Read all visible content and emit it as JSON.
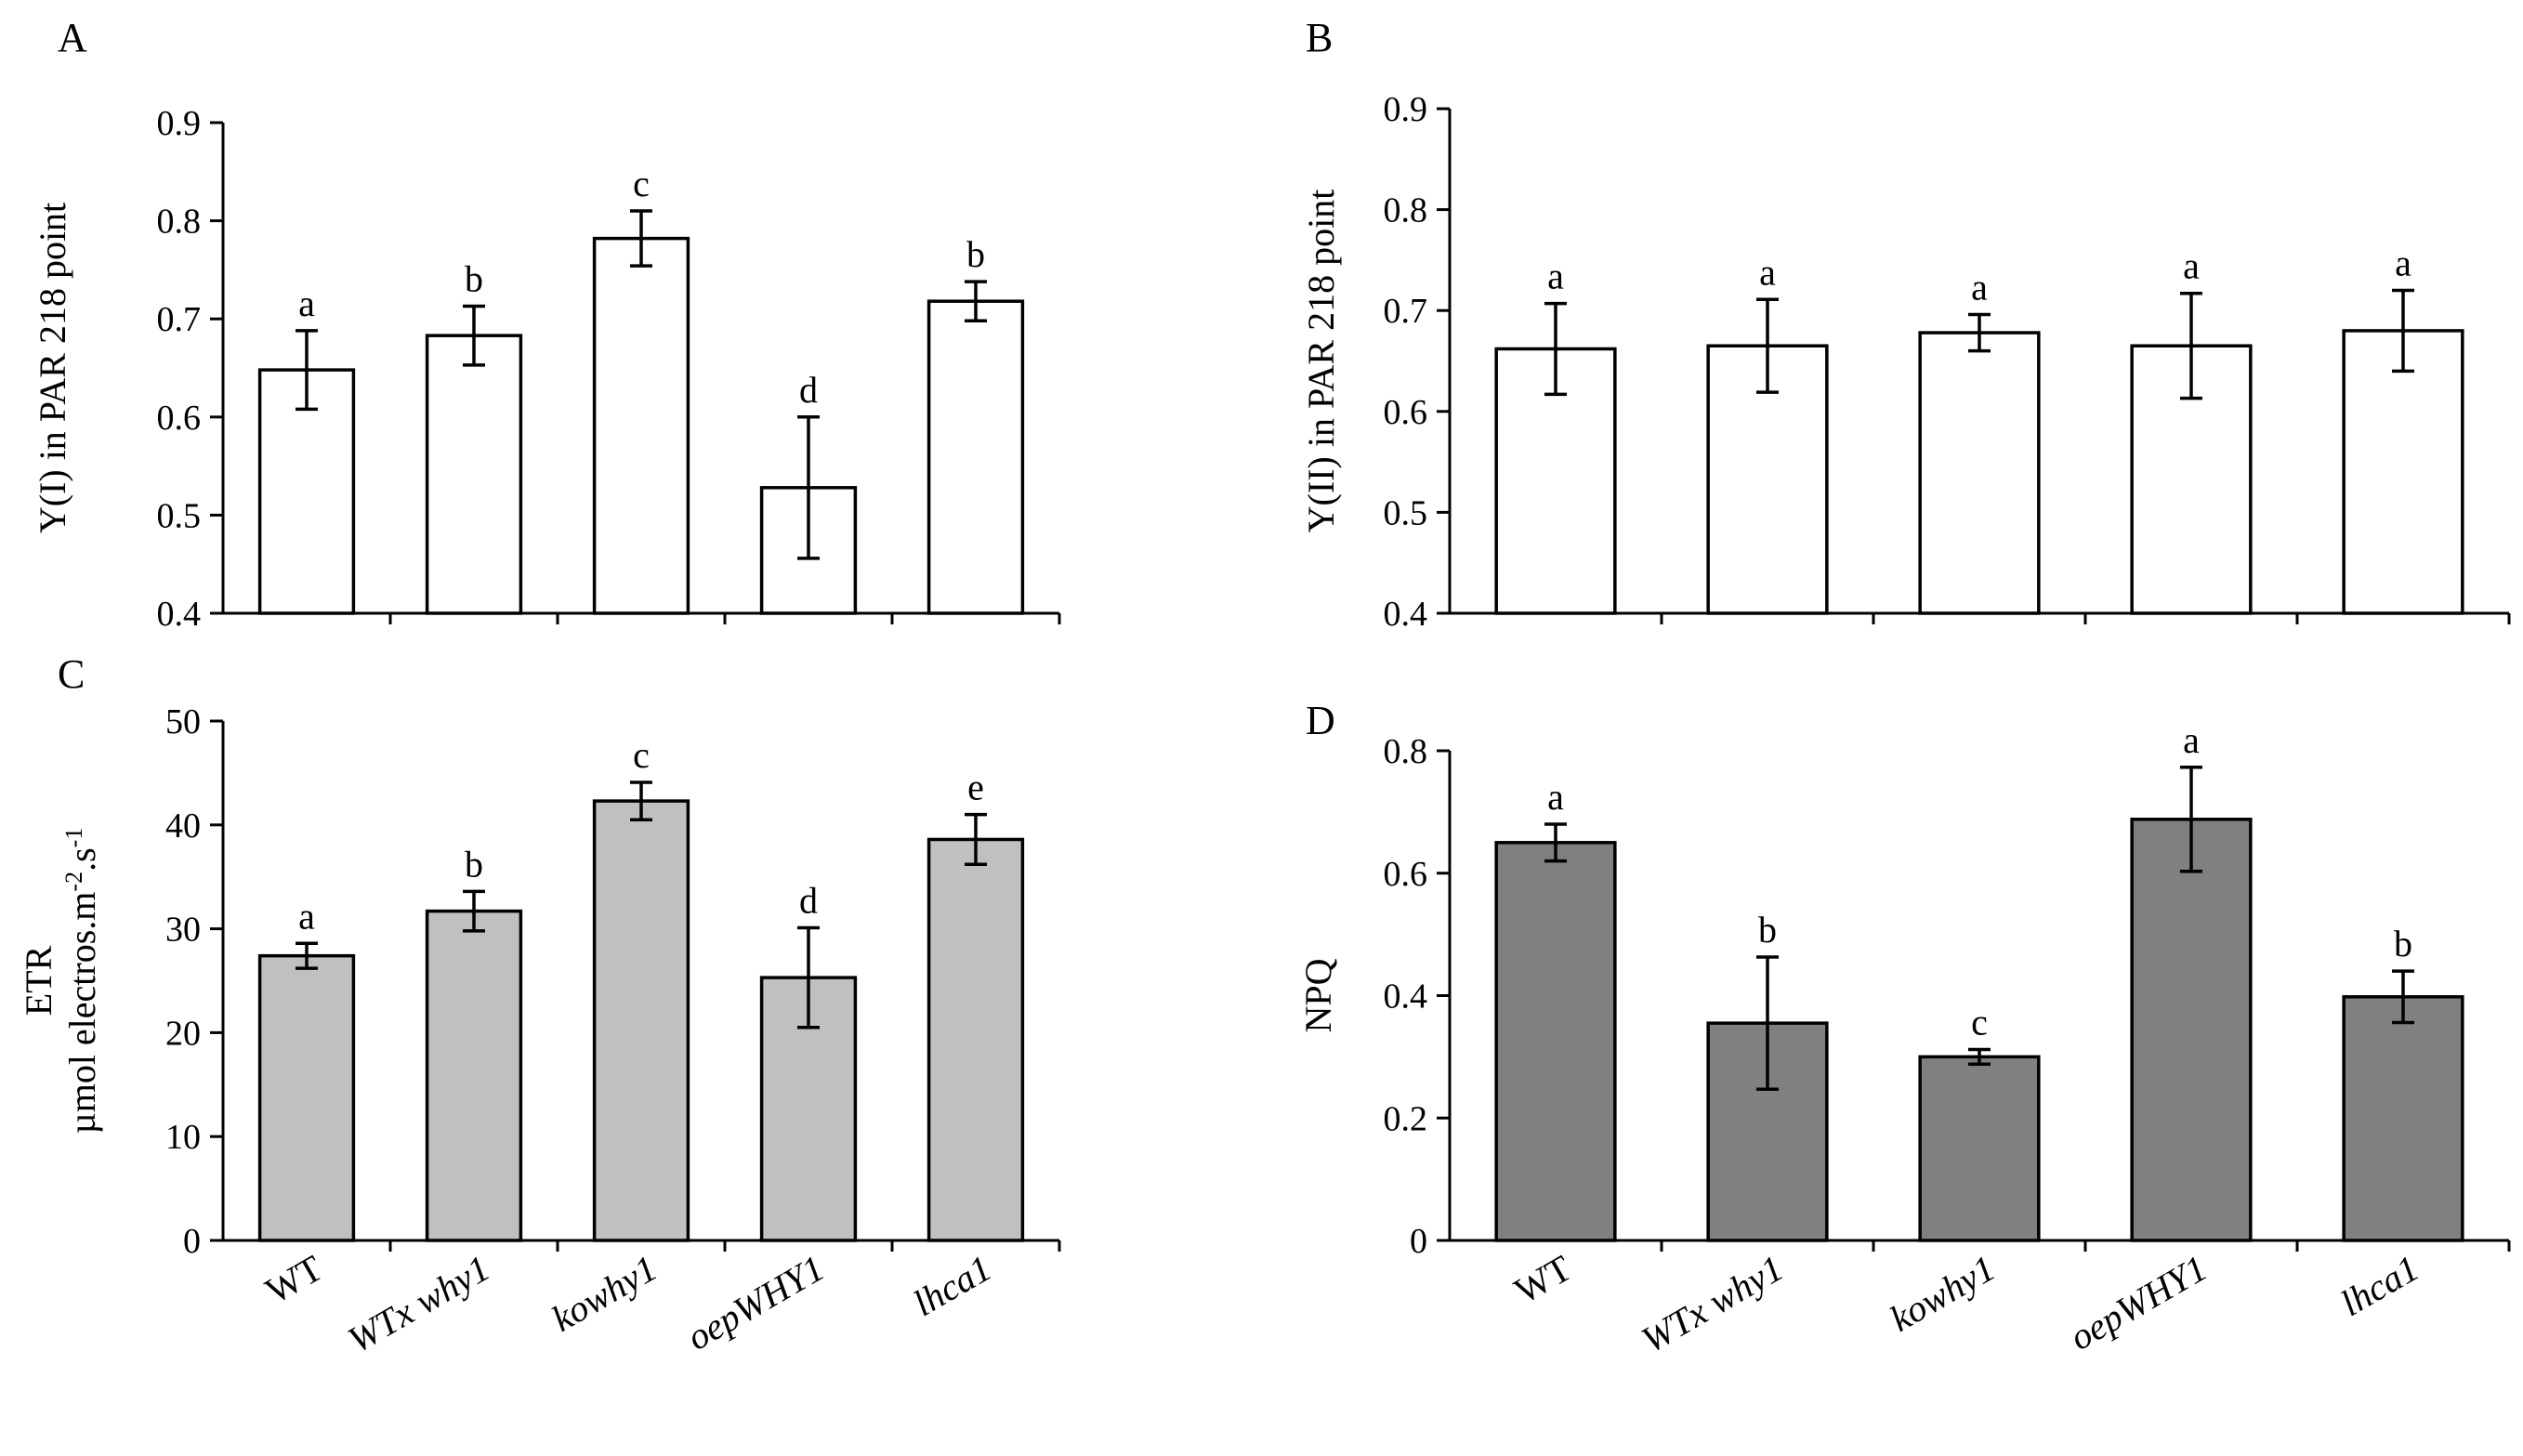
{
  "chart_data": [
    {
      "type": "bar",
      "panel": "A",
      "ylabel": "Y(I) in PAR 218 point",
      "ylim": [
        0.4,
        0.9
      ],
      "yticks": [
        "0.4",
        "0.5",
        "0.6",
        "0.7",
        "0.8",
        "0.9"
      ],
      "fill": "#ffffff",
      "categories": [
        "WT",
        "WTx why1",
        "kowhy1",
        "oepWHY1",
        "lhca1"
      ],
      "values": [
        0.648,
        0.683,
        0.782,
        0.528,
        0.718
      ],
      "errors": [
        0.04,
        0.03,
        0.028,
        0.072,
        0.02
      ],
      "letters": [
        "a",
        "b",
        "c",
        "d",
        "b"
      ]
    },
    {
      "type": "bar",
      "panel": "B",
      "ylabel": "Y(II) in PAR 218 point",
      "ylim": [
        0.4,
        0.9
      ],
      "yticks": [
        "0.4",
        "0.5",
        "0.6",
        "0.7",
        "0.8",
        "0.9"
      ],
      "fill": "#ffffff",
      "categories": [
        "WT",
        "WTx why1",
        "kowhy1",
        "oepWHY1",
        "lhca1"
      ],
      "values": [
        0.662,
        0.665,
        0.678,
        0.665,
        0.68
      ],
      "errors": [
        0.045,
        0.046,
        0.018,
        0.052,
        0.04
      ],
      "letters": [
        "a",
        "a",
        "a",
        "a",
        "a"
      ]
    },
    {
      "type": "bar",
      "panel": "C",
      "ylabel": "ETR",
      "ylabel2_parts": [
        "µmol electros.m",
        "-2",
        ".s",
        "-1"
      ],
      "ylim": [
        0,
        50
      ],
      "yticks": [
        "0",
        "10",
        "20",
        "30",
        "40",
        "50"
      ],
      "fill": "#c0c0c0",
      "categories": [
        "WT",
        "WTx why1",
        "kowhy1",
        "oepWHY1",
        "lhca1"
      ],
      "values": [
        27.4,
        31.7,
        42.3,
        25.3,
        38.6
      ],
      "errors": [
        1.2,
        1.9,
        1.8,
        4.8,
        2.4
      ],
      "letters": [
        "a",
        "b",
        "c",
        "d",
        "e"
      ]
    },
    {
      "type": "bar",
      "panel": "D",
      "ylabel": "NPQ",
      "ylim": [
        0,
        0.8
      ],
      "yticks": [
        "0",
        "0.2",
        "0.4",
        "0.6",
        "0.8"
      ],
      "fill": "#808080",
      "categories": [
        "WT",
        "WTx why1",
        "kowhy1",
        "oepWHY1",
        "lhca1"
      ],
      "values": [
        0.65,
        0.355,
        0.3,
        0.688,
        0.398
      ],
      "errors": [
        0.03,
        0.108,
        0.012,
        0.085,
        0.042
      ],
      "letters": [
        "a",
        "b",
        "c",
        "a",
        "b"
      ]
    }
  ]
}
